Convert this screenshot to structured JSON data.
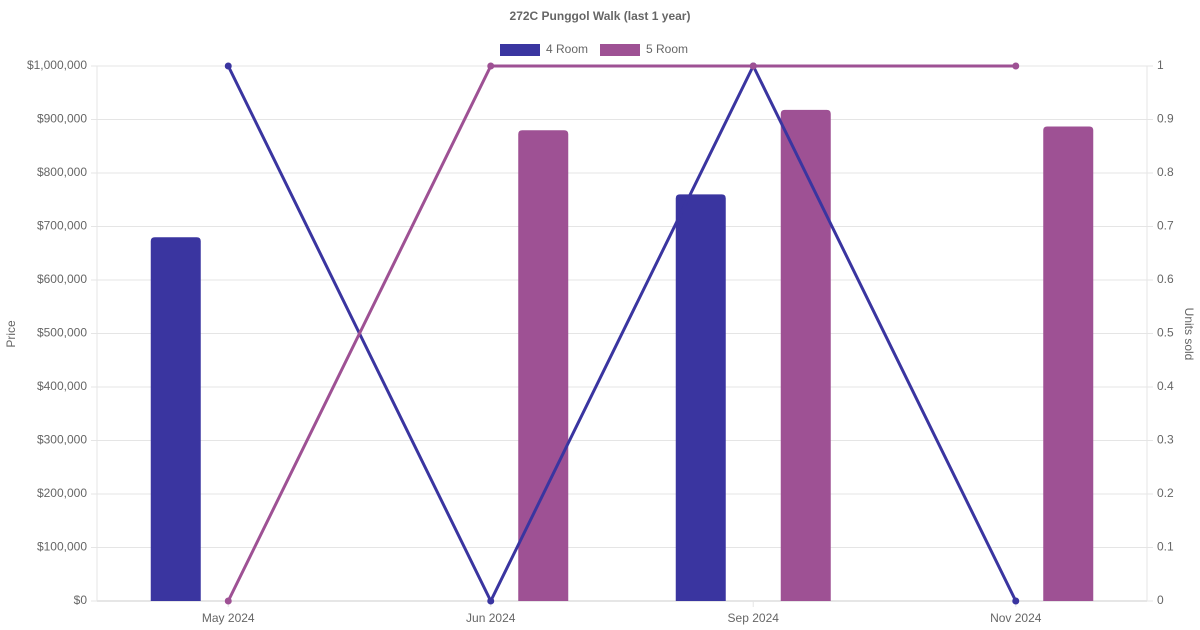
{
  "chart_data": {
    "type": "bar",
    "title": "272C Punggol Walk (last 1 year)",
    "y_label": "Price",
    "y2_label": "Units sold",
    "categories": [
      "May 2024",
      "Jun 2024",
      "Sep 2024",
      "Nov 2024"
    ],
    "series": [
      {
        "name": "4 Room",
        "color": "#3a35a0",
        "type": "bar",
        "values": [
          680000,
          null,
          760000,
          null
        ]
      },
      {
        "name": "5 Room",
        "color": "#9e5194",
        "type": "bar",
        "values": [
          null,
          880000,
          918000,
          887000
        ]
      },
      {
        "color": "#3a35a0",
        "type": "line",
        "axis": "y2",
        "values": [
          1,
          0,
          1,
          0
        ]
      },
      {
        "color": "#9e5194",
        "type": "line",
        "axis": "y2",
        "values": [
          0,
          1,
          1,
          1
        ]
      }
    ],
    "ylim": [
      0,
      1000000
    ],
    "yticks": [
      {
        "value": 0,
        "label": "$0"
      },
      {
        "value": 100000,
        "label": "$100,000"
      },
      {
        "value": 200000,
        "label": "$200,000"
      },
      {
        "value": 300000,
        "label": "$300,000"
      },
      {
        "value": 400000,
        "label": "$400,000"
      },
      {
        "value": 500000,
        "label": "$500,000"
      },
      {
        "value": 600000,
        "label": "$600,000"
      },
      {
        "value": 700000,
        "label": "$700,000"
      },
      {
        "value": 800000,
        "label": "$800,000"
      },
      {
        "value": 900000,
        "label": "$900,000"
      },
      {
        "value": 1000000,
        "label": "$1,000,000"
      }
    ],
    "y2lim": [
      0,
      1
    ],
    "y2ticks": [
      0,
      0.1,
      0.2,
      0.3,
      0.4,
      0.5,
      0.6,
      0.7,
      0.8,
      0.9,
      1
    ],
    "grid": true,
    "legend": "top"
  }
}
